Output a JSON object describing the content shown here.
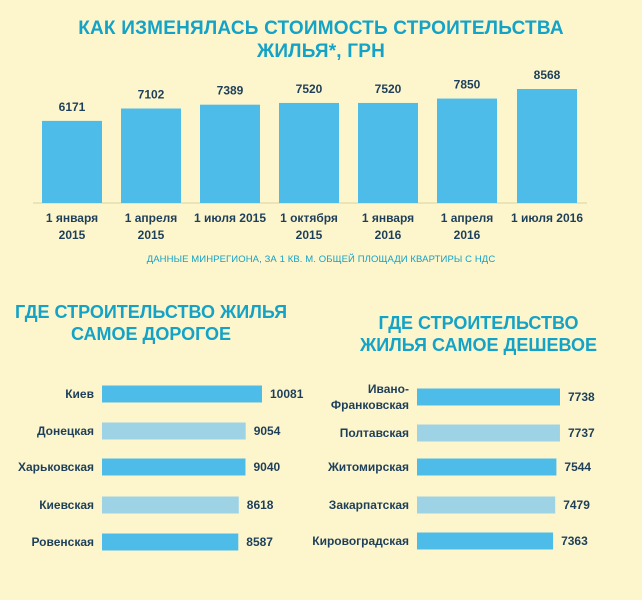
{
  "title_line1": "КАК ИЗМЕНЯЛАСЬ СТОИМОСТЬ СТРОИТЕЛЬСТВА",
  "title_line2": "ЖИЛЬЯ*, ГРН",
  "note": "ДАННЫЕ МИНРЕГИОНА, ЗА 1 КВ. М. ОБЩЕЙ ПЛОЩАДИ КВАРТИРЫ С НДС",
  "colors": {
    "bar": "#4dbce9",
    "bar_light": "#9ed3e6",
    "title": "#14a2c7",
    "text": "#1e3f5a",
    "background": "#fdf6cc"
  },
  "chart_data": [
    {
      "type": "bar",
      "title": "КАК ИЗМЕНЯЛАСЬ СТОИМОСТЬ СТРОИТЕЛЬСТВА ЖИЛЬЯ*, ГРН",
      "categories": [
        [
          "1 января",
          "2015"
        ],
        [
          "1 апреля",
          "2015"
        ],
        [
          "1 июля 2015"
        ],
        [
          "1 октября",
          "2015"
        ],
        [
          "1 января",
          "2016"
        ],
        [
          "1 апреля",
          "2016"
        ],
        [
          "1 июля 2016"
        ]
      ],
      "values": [
        6171,
        7102,
        7389,
        7520,
        7520,
        7850,
        8568
      ],
      "ylim": [
        0,
        8568
      ],
      "grid": false,
      "legend": false
    },
    {
      "type": "bar",
      "orientation": "horizontal",
      "title": "ГДЕ СТРОИТЕЛЬСТВО ЖИЛЬЯ САМОЕ ДОРОГОЕ",
      "title_lines": [
        "ГДЕ СТРОИТЕЛЬСТВО ЖИЛЬЯ",
        "САМОЕ ДОРОГОЕ"
      ],
      "categories": [
        [
          "Киев"
        ],
        [
          "Донецкая"
        ],
        [
          "Харьковская"
        ],
        [
          "Киевская"
        ],
        [
          "Ровенская"
        ]
      ],
      "values": [
        10081,
        9054,
        9040,
        8618,
        8587
      ],
      "bar_shades": [
        "dark",
        "light",
        "dark",
        "light",
        "dark"
      ],
      "xlim": [
        0,
        10081
      ]
    },
    {
      "type": "bar",
      "orientation": "horizontal",
      "title": "ГДЕ СТРОИТЕЛЬСТВО ЖИЛЬЯ САМОЕ ДЕШЕВОЕ",
      "title_lines": [
        "ГДЕ СТРОИТЕЛЬСТВО",
        "ЖИЛЬЯ САМОЕ ДЕШЕВОЕ"
      ],
      "categories": [
        [
          "Ивано-",
          "Франковская"
        ],
        [
          "Полтавская"
        ],
        [
          "Житомирская"
        ],
        [
          "Закарпатская"
        ],
        [
          "Кировоградская"
        ]
      ],
      "values": [
        7738,
        7737,
        7544,
        7479,
        7363
      ],
      "bar_shades": [
        "dark",
        "light",
        "dark",
        "light",
        "dark"
      ],
      "xlim": [
        0,
        7738
      ]
    }
  ]
}
